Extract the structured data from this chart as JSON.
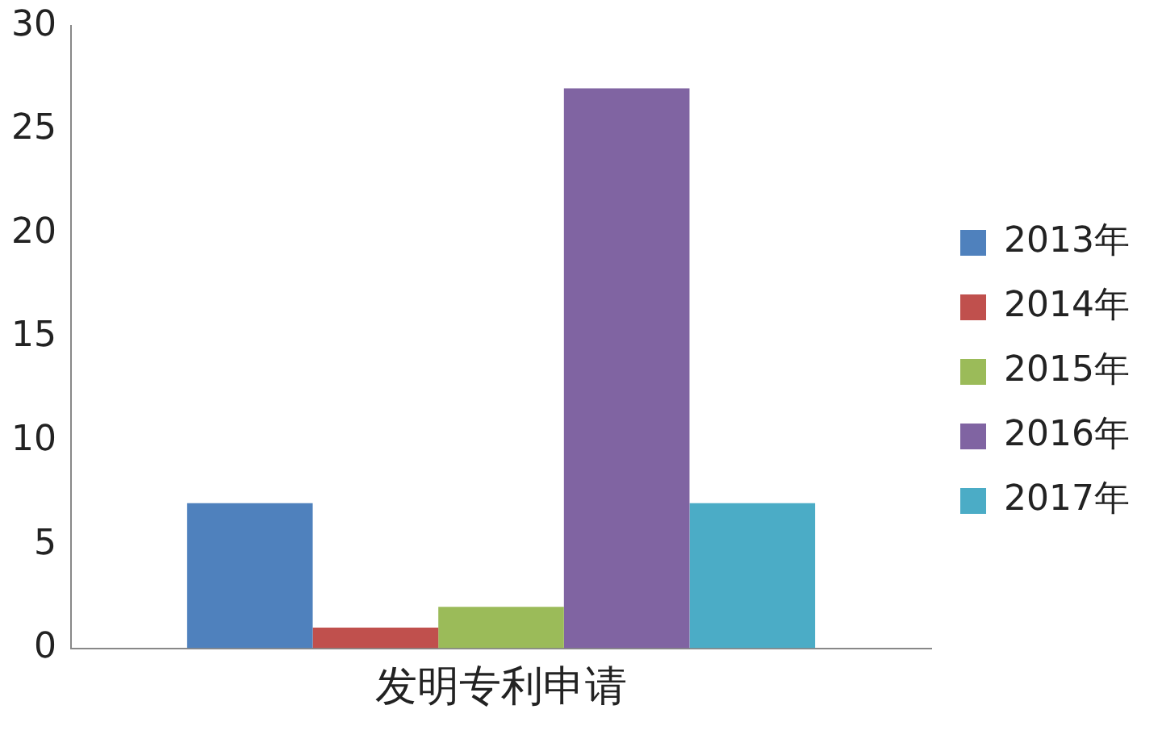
{
  "chart_data": {
    "type": "bar",
    "categories": [
      "发明专利申请"
    ],
    "series": [
      {
        "name": "2013年",
        "color": "#4f81bd",
        "values": [
          7
        ]
      },
      {
        "name": "2014年",
        "color": "#c0504d",
        "values": [
          1
        ]
      },
      {
        "name": "2015年",
        "color": "#9bbb59",
        "values": [
          2
        ]
      },
      {
        "name": "2016年",
        "color": "#8064a2",
        "values": [
          27
        ]
      },
      {
        "name": "2017年",
        "color": "#4bacc6",
        "values": [
          7
        ]
      }
    ],
    "ylim": [
      0,
      30
    ],
    "yticks": [
      0,
      5,
      10,
      15,
      20,
      25,
      30
    ],
    "grid": false,
    "legend": "right"
  }
}
